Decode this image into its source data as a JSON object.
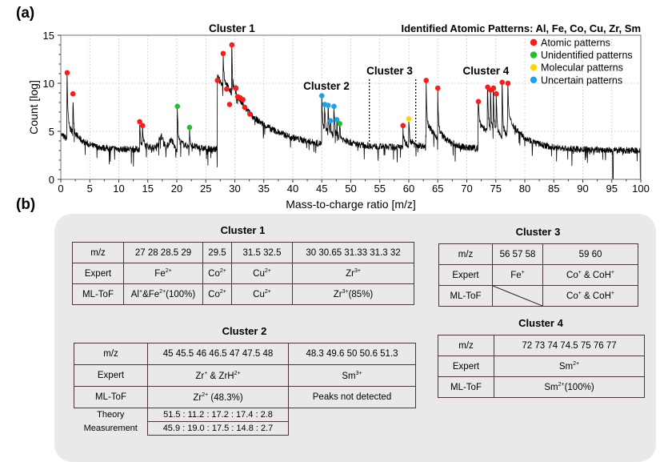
{
  "labels": {
    "a": "(a)",
    "b": "(b)"
  },
  "chart_data": {
    "type": "line",
    "title": "Identified Atomic Patterns: Al, Fe, Co, Cu, Zr, Sm",
    "xlabel": "Mass-to-charge ratio [m/z]",
    "ylabel": "Count [log]",
    "xlim": [
      0,
      100
    ],
    "ylim": [
      0,
      15
    ],
    "xticks": [
      0,
      5,
      10,
      15,
      20,
      25,
      30,
      35,
      40,
      45,
      50,
      55,
      60,
      65,
      70,
      75,
      80,
      85,
      90,
      95,
      100
    ],
    "yticks": [
      0,
      5,
      10,
      15
    ],
    "grid": true,
    "legend_placement": "top-right",
    "legend": [
      {
        "label": "Atomic patterns",
        "color": "#ff1a1a"
      },
      {
        "label": "Unidentified patterns",
        "color": "#22c02a"
      },
      {
        "label": "Molecular patterns",
        "color": "#ffd400"
      },
      {
        "label": "Uncertain patterns",
        "color": "#1ea0f0"
      }
    ],
    "annotations": [
      {
        "text": "Cluster 1",
        "x": 29.5
      },
      {
        "text": "Cluster 2",
        "x": 46
      },
      {
        "text": "Cluster 3",
        "x": 57
      },
      {
        "text": "Cluster 4",
        "x": 73.5
      }
    ],
    "cluster3_bounds": [
      53.2,
      61.2
    ],
    "peaks": [
      {
        "mz": 1.1,
        "count": 11.1,
        "type": 0
      },
      {
        "mz": 2.1,
        "count": 8.9,
        "type": 0
      },
      {
        "mz": 13.6,
        "count": 6.0,
        "type": 0
      },
      {
        "mz": 14.1,
        "count": 5.6,
        "type": 0
      },
      {
        "mz": 20.1,
        "count": 7.6,
        "type": 1
      },
      {
        "mz": 22.2,
        "count": 5.4,
        "type": 1
      },
      {
        "mz": 27.0,
        "count": 10.3,
        "type": 0
      },
      {
        "mz": 28.0,
        "count": 13.1,
        "type": 0
      },
      {
        "mz": 28.6,
        "count": 9.4,
        "type": 0
      },
      {
        "mz": 29.1,
        "count": 7.8,
        "type": 0
      },
      {
        "mz": 29.5,
        "count": 14.0,
        "type": 0
      },
      {
        "mz": 30.2,
        "count": 9.5,
        "type": 0
      },
      {
        "mz": 30.5,
        "count": 8.6,
        "type": 0
      },
      {
        "mz": 30.9,
        "count": 8.5,
        "type": 0
      },
      {
        "mz": 31.4,
        "count": 8.3,
        "type": 0
      },
      {
        "mz": 31.7,
        "count": 7.5,
        "type": 0
      },
      {
        "mz": 32.6,
        "count": 6.8,
        "type": 0
      },
      {
        "mz": 45.0,
        "count": 8.7,
        "type": 3
      },
      {
        "mz": 45.5,
        "count": 7.8,
        "type": 3
      },
      {
        "mz": 46.1,
        "count": 7.7,
        "type": 3
      },
      {
        "mz": 46.5,
        "count": 6.1,
        "type": 3
      },
      {
        "mz": 47.1,
        "count": 7.6,
        "type": 3
      },
      {
        "mz": 47.6,
        "count": 6.2,
        "type": 3
      },
      {
        "mz": 48.1,
        "count": 5.8,
        "type": 1
      },
      {
        "mz": 59.0,
        "count": 5.6,
        "type": 0
      },
      {
        "mz": 60.0,
        "count": 6.3,
        "type": 2
      },
      {
        "mz": 63.0,
        "count": 10.3,
        "type": 0
      },
      {
        "mz": 65.0,
        "count": 9.5,
        "type": 0
      },
      {
        "mz": 72.0,
        "count": 8.1,
        "type": 0
      },
      {
        "mz": 73.6,
        "count": 9.6,
        "type": 0
      },
      {
        "mz": 74.1,
        "count": 9.3,
        "type": 0
      },
      {
        "mz": 74.6,
        "count": 9.5,
        "type": 0
      },
      {
        "mz": 75.1,
        "count": 8.9,
        "type": 0
      },
      {
        "mz": 76.1,
        "count": 10.1,
        "type": 0
      },
      {
        "mz": 77.1,
        "count": 10.0,
        "type": 0
      }
    ]
  },
  "tables": {
    "cluster1": {
      "title": "Cluster 1",
      "rows": [
        [
          "m/z",
          "27  28  28.5  29",
          "29.5",
          "31.5  32.5",
          "30  30.65  31.33  31.3  32"
        ],
        [
          "Expert",
          "Fe^{2+}",
          "Co^{2+}",
          "Cu^{2+}",
          "Zr^{3+}"
        ],
        [
          "ML-ToF",
          "Al^{+}&Fe^{2+}(100%)",
          "Co^{2+}",
          "Cu^{2+}",
          "Zr^{3+}(85%)"
        ]
      ]
    },
    "cluster2": {
      "title": "Cluster 2",
      "rows": [
        [
          "m/z",
          "45  45.5  46  46.5  47  47.5 48",
          "48.3  49.6  50  50.6  51.3"
        ],
        [
          "Expert",
          "Zr^{+} & ZrH^{2+}",
          "Sm^{3+}"
        ],
        [
          "ML-ToF",
          "Zr^{2+} (48.3%)",
          "Peaks not detected"
        ],
        [
          "Theory",
          "51.5 : 11.2 : 17.2 : 17.4 : 2.8",
          ""
        ],
        [
          "Measurement",
          "45.9 : 19.0 : 17.5 : 14.8 : 2.7",
          ""
        ]
      ]
    },
    "cluster3": {
      "title": "Cluster 3",
      "rows": [
        [
          "m/z",
          "56 57 58",
          "59  60"
        ],
        [
          "Expert",
          "Fe^{+}",
          "Co^{+} & CoH^{+}"
        ],
        [
          "ML-ToF",
          "",
          "Co^{+} & CoH^{+}"
        ]
      ]
    },
    "cluster4": {
      "title": "Cluster 4",
      "rows": [
        [
          "m/z",
          "72  73  74  74.5  75  76  77"
        ],
        [
          "Expert",
          "Sm^{2+}"
        ],
        [
          "ML-ToF",
          "Sm^{2+}(100%)"
        ]
      ]
    }
  }
}
